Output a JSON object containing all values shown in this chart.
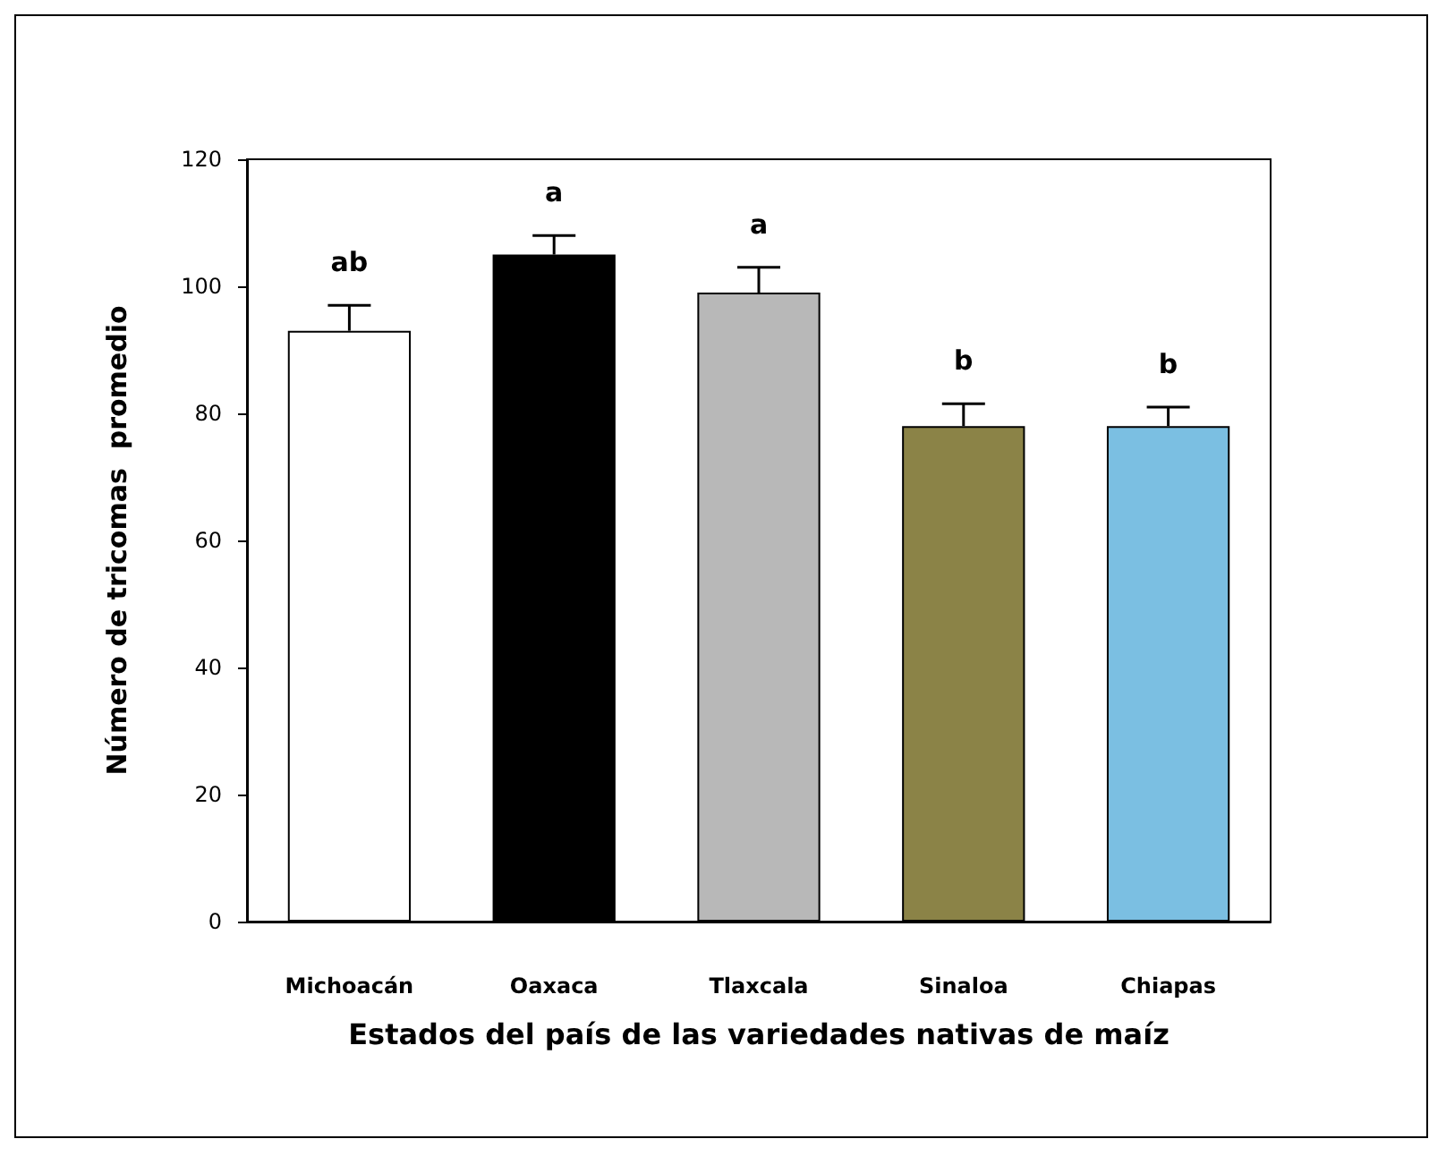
{
  "chart_data": {
    "type": "bar",
    "xlabel": "Estados del país de las variedades nativas de maíz",
    "ylabel": "Número de tricomas  promedio",
    "categories": [
      "Michoacán",
      "Oaxaca",
      "Tlaxcala",
      "Sinaloa",
      "Chiapas"
    ],
    "values": [
      93,
      105,
      99,
      78,
      78
    ],
    "colors": [
      "#ffffff",
      "#000000",
      "#b8b8b8",
      "#8b8347",
      "#7bbfe2"
    ],
    "errors": [
      [
        93,
        97
      ],
      [
        105,
        108
      ],
      [
        99,
        103
      ],
      [
        78,
        81.5
      ],
      [
        78,
        81
      ]
    ],
    "annotations": [
      "ab",
      "a",
      "a",
      "b",
      "b"
    ],
    "ylim": [
      0,
      120
    ],
    "yticks": [
      0,
      20,
      40,
      60,
      80,
      100,
      120
    ],
    "grid": false
  }
}
